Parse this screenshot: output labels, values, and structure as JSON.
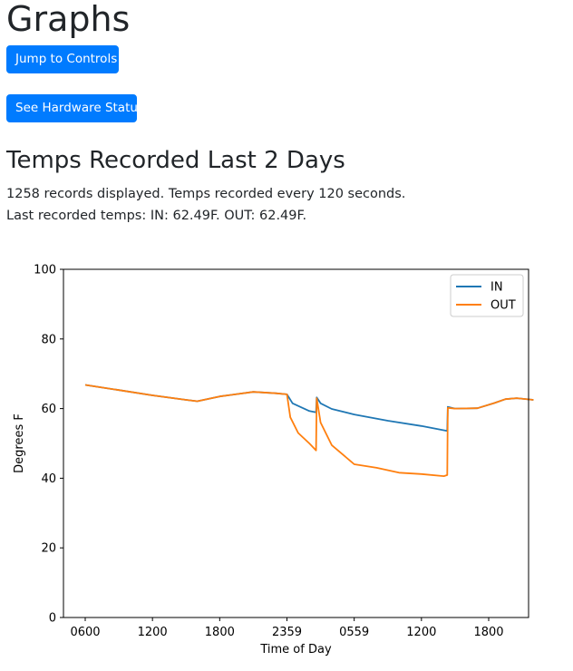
{
  "page": {
    "title": "Graphs",
    "jump_button": "Jump to Controls",
    "hardware_button": "See Hardware Status",
    "section_title": "Temps Recorded Last 2 Days",
    "records_text": "1258 records displayed. Temps recorded every 120 seconds.",
    "last_temps_text": "Last recorded temps: IN: 62.49F. OUT: 62.49F."
  },
  "colors": {
    "button": "#007bff",
    "in_series": "#1f77b4",
    "out_series": "#ff7f0e"
  },
  "chart_data": {
    "type": "line",
    "xlabel": "Time of Day",
    "ylabel": "Degrees F",
    "ylim": [
      0,
      100
    ],
    "yticks": [
      0,
      20,
      40,
      60,
      80,
      100
    ],
    "xlim": [
      0,
      48
    ],
    "x_unit": "hours since first tick (0600)",
    "xtick_positions": [
      0,
      6,
      12,
      18,
      24,
      30,
      36
    ],
    "xtick_labels": [
      "0600",
      "1200",
      "1800",
      "2359",
      "0559",
      "1200",
      "1800"
    ],
    "legend": "top-right",
    "series": [
      {
        "name": "IN",
        "x": [
          0,
          3,
          6,
          9,
          10,
          12,
          15,
          17,
          18,
          18.5,
          20,
          20.6,
          20.65,
          21,
          22,
          24,
          27,
          30,
          32.3,
          32.35,
          33,
          35,
          36.5,
          37.5,
          38.5,
          40
        ],
        "y": [
          66.8,
          65.3,
          63.8,
          62.5,
          62.1,
          63.5,
          64.8,
          64.4,
          64.1,
          61.5,
          59.3,
          58.9,
          63.2,
          61.5,
          59.9,
          58.3,
          56.5,
          55.0,
          53.6,
          60.5,
          60.0,
          60.1,
          61.6,
          62.7,
          63.0,
          62.5
        ]
      },
      {
        "name": "OUT",
        "x": [
          0,
          3,
          6,
          9,
          10,
          12,
          15,
          17,
          18,
          18.3,
          19,
          20,
          20.6,
          20.65,
          21,
          22,
          24,
          26,
          28,
          30,
          32,
          32.3,
          32.35,
          33,
          35,
          36.5,
          37.5,
          38.5,
          40
        ],
        "y": [
          66.8,
          65.3,
          63.8,
          62.5,
          62.1,
          63.5,
          64.8,
          64.4,
          64.1,
          57.5,
          53.0,
          50.0,
          48.0,
          63.0,
          56.0,
          49.5,
          44.0,
          43.0,
          41.6,
          41.2,
          40.6,
          40.9,
          60.2,
          60.0,
          60.1,
          61.6,
          62.7,
          63.0,
          62.5
        ]
      }
    ]
  }
}
